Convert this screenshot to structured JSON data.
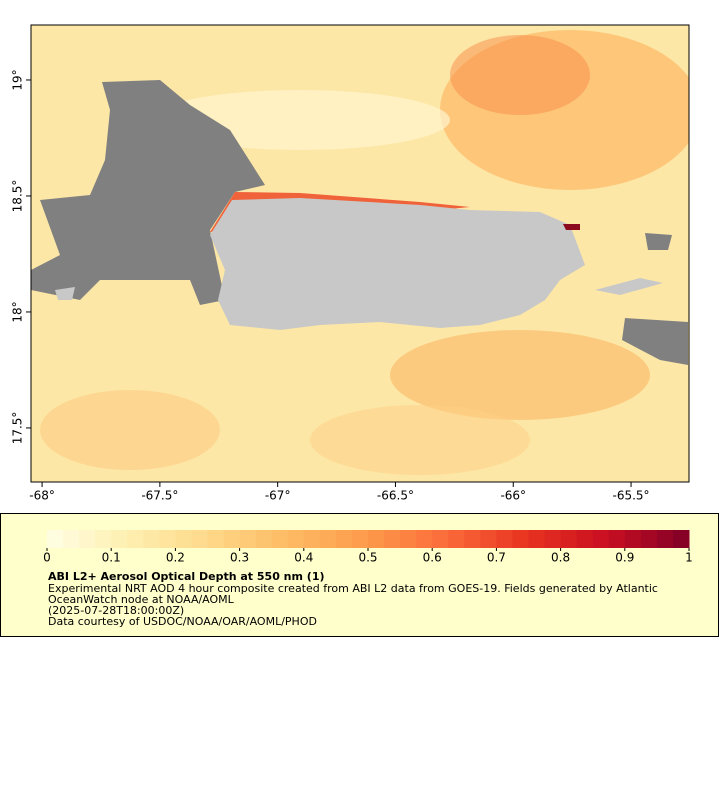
{
  "map": {
    "xlim": [
      -68.047,
      -65.254
    ],
    "ylim": [
      17.267,
      19.237
    ],
    "xticks": [
      {
        "value": -68,
        "label": "-68°"
      },
      {
        "value": -67.5,
        "label": "-67.5°"
      },
      {
        "value": -67,
        "label": "-67°"
      },
      {
        "value": -66.5,
        "label": "-66.5°"
      },
      {
        "value": -66,
        "label": "-66°"
      },
      {
        "value": -65.5,
        "label": "-65.5°"
      }
    ],
    "yticks": [
      {
        "value": 17.5,
        "label": "17.5°"
      },
      {
        "value": 18,
        "label": "18°"
      },
      {
        "value": 18.5,
        "label": "18.5°"
      },
      {
        "value": 19,
        "label": "19°"
      }
    ]
  },
  "colorbar": {
    "lim": [
      0,
      1
    ],
    "ticks": [
      0,
      0.1,
      0.2,
      0.3,
      0.4,
      0.5,
      0.6,
      0.7,
      0.8,
      0.9,
      1
    ],
    "colors": [
      "#ffffe5",
      "#feefb0",
      "#fed98a",
      "#fdbb63",
      "#fd9a4a",
      "#fb6a3a",
      "#e7311f",
      "#c80e22",
      "#800026"
    ],
    "steps": 40
  },
  "legend": {
    "title": "ABI L2+ Aerosol Optical Depth at 550 nm (1)",
    "lines": [
      "Experimental NRT AOD 4 hour composite created from ABI L2 data from GOES-19. Fields generated by Atlantic",
      "OceanWatch node at NOAA/AOML",
      "(2025-07-28T18:00:00Z)",
      "Data courtesy of USDOC/NOAA/OAR/AOML/PHOD"
    ]
  }
}
